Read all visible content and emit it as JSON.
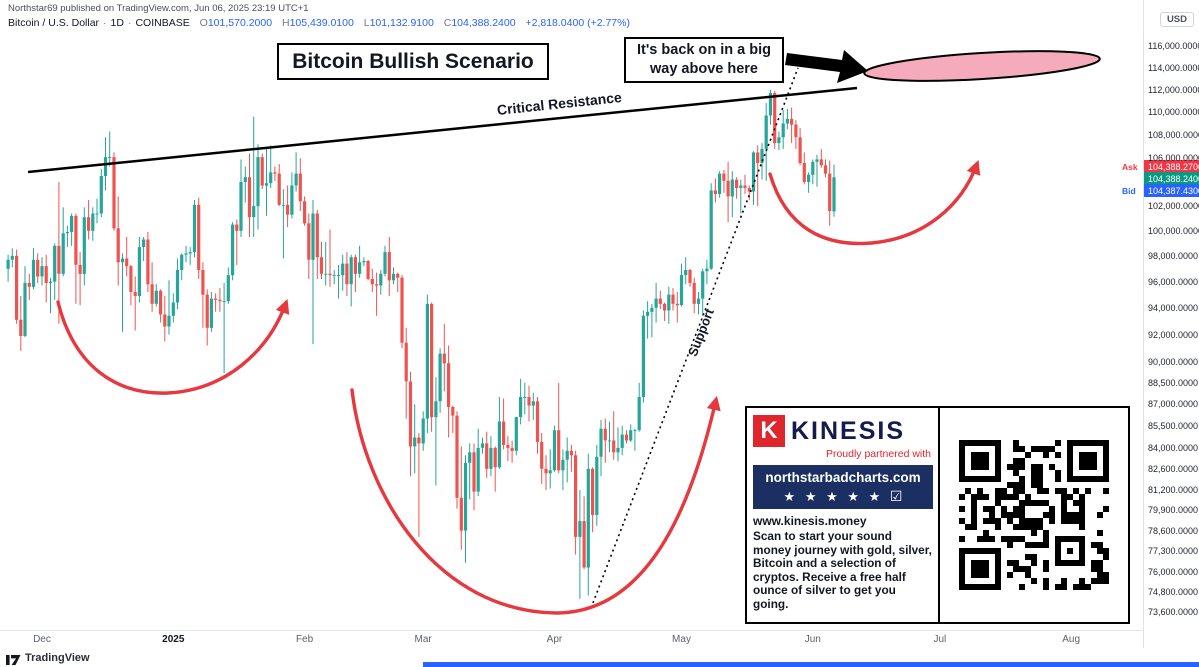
{
  "meta": {
    "published_line": "Northstar69 published on TradingView.com, Jun 06, 2025 23:19 UTC+1"
  },
  "symbol_header": {
    "title": "Bitcoin / U.S. Dollar",
    "sep": "·",
    "interval": "1D",
    "exchange": "COINBASE",
    "o_label": "O",
    "o": "101,570.2000",
    "h_label": "H",
    "h": "105,439.0100",
    "l_label": "L",
    "l": "101,132.9100",
    "c_label": "C",
    "c": "104,388.2400",
    "change": "+2,818.0400 (+2.77%)"
  },
  "annotations": {
    "title": "Bitcoin Bullish Scenario",
    "callout_line1": "It's back on in a big",
    "callout_line2": "way above here",
    "resistance_label": "Critical Resistance",
    "support_label": "Support"
  },
  "price_axis": {
    "currency": "USD",
    "ticks": [
      [
        116000,
        "116,000.0000"
      ],
      [
        114000,
        "114,000.0000"
      ],
      [
        112000,
        "112,000.0000"
      ],
      [
        110000,
        "110,000.0000"
      ],
      [
        108000,
        "108,000.0000"
      ],
      [
        106000,
        "106,000.0000"
      ],
      [
        102000,
        "102,000.0000"
      ],
      [
        100000,
        "100,000.0000"
      ],
      [
        98000,
        "98,000.0000"
      ],
      [
        96000,
        "96,000.0000"
      ],
      [
        94000,
        "94,000.0000"
      ],
      [
        92000,
        "92,000.0000"
      ],
      [
        90000,
        "90,000.0000"
      ],
      [
        88500,
        "88,500.0000"
      ],
      [
        87000,
        "87,000.0000"
      ],
      [
        85500,
        "85,500.0000"
      ],
      [
        84000,
        "84,000.0000"
      ],
      [
        82600,
        "82,600.0000"
      ],
      [
        81200,
        "81,200.0000"
      ],
      [
        79900,
        "79,900.0000"
      ],
      [
        78600,
        "78,600.0000"
      ],
      [
        77300,
        "77,300.0000"
      ],
      [
        76000,
        "76,000.0000"
      ],
      [
        74800,
        "74,800.0000"
      ],
      [
        73600,
        "73,600.0000"
      ]
    ],
    "ask": {
      "label": "Ask",
      "value": "104,388.2700",
      "price": 104388.27
    },
    "last": {
      "value": "104,388.2400",
      "price": 104388.24
    },
    "bid": {
      "label": "Bid",
      "value": "104,387.4300",
      "price": 104387.43
    }
  },
  "time_axis": {
    "labels": [
      {
        "text": "Dec",
        "idx": 8
      },
      {
        "text": "2025",
        "idx": 39
      },
      {
        "text": "Feb",
        "idx": 70
      },
      {
        "text": "Mar",
        "idx": 98
      },
      {
        "text": "Apr",
        "idx": 129
      },
      {
        "text": "May",
        "idx": 159
      },
      {
        "text": "Jun",
        "idx": 190
      },
      {
        "text": "Jul",
        "idx": 220
      },
      {
        "text": "Aug",
        "idx": 251
      }
    ]
  },
  "footer": {
    "brand": "TradingView"
  },
  "ad": {
    "logo_letter": "K",
    "brand": "KINESIS",
    "partner_line": "Proudly partnered with",
    "banner_site": "northstarbadcharts.com",
    "banner_stars": "★ ★ ★ ★ ★",
    "banner_check": "☑",
    "url": "www.kinesis.money",
    "body": "Scan to start your sound money journey with gold, silver, Bitcoin and a selection of cryptos. Receive a free half ounce of silver to get you going."
  },
  "chart_data": {
    "type": "candlestick",
    "symbol": "Bitcoin / U.S. Dollar (COINBASE)",
    "interval": "1D",
    "scale": "logarithmic",
    "values_unit": "USD thousands",
    "date_range": "Nov 23 2024 - Jun 6 2025",
    "ylim": [
      73300,
      117000
    ],
    "x_month_labels": [
      "Dec",
      "2025",
      "Feb",
      "Mar",
      "Apr",
      "May",
      "Jun",
      "Jul",
      "Aug"
    ],
    "ohlc_last": {
      "open": 101570.2,
      "high": 105439.01,
      "low": 101132.91,
      "close": 104388.24,
      "change_pct": 2.77
    },
    "colors": {
      "up": "#26a69a",
      "down": "#ef5350",
      "arrow": "#e5383f",
      "ellipse_fill": "#f5abbc"
    },
    "overlays": [
      "rising resistance trendline",
      "dotted support trendline",
      "three red cup-shaped arrows",
      "pink breakout ellipse above resistance"
    ],
    "candles": [
      [
        97.0,
        98.1,
        96.0,
        97.7
      ],
      [
        97.7,
        98.6,
        97.1,
        98.0
      ],
      [
        98.0,
        98.5,
        92.8,
        93.1
      ],
      [
        93.1,
        94.9,
        90.8,
        91.9
      ],
      [
        91.9,
        97.2,
        91.8,
        95.9
      ],
      [
        95.9,
        96.6,
        94.6,
        95.6
      ],
      [
        95.6,
        98.6,
        95.4,
        97.7
      ],
      [
        97.7,
        98.2,
        95.9,
        96.4
      ],
      [
        96.4,
        97.9,
        95.7,
        97.2
      ],
      [
        97.2,
        98.1,
        94.4,
        95.9
      ],
      [
        95.9,
        96.3,
        93.6,
        96.0
      ],
      [
        96.0,
        99.0,
        94.6,
        98.8
      ],
      [
        98.8,
        104.0,
        92.8,
        96.6
      ],
      [
        96.6,
        101.9,
        96.4,
        99.8
      ],
      [
        99.8,
        100.4,
        98.7,
        99.9
      ],
      [
        99.9,
        101.4,
        98.8,
        101.2
      ],
      [
        101.2,
        101.4,
        94.3,
        97.3
      ],
      [
        97.3,
        98.3,
        94.2,
        96.6
      ],
      [
        96.6,
        101.9,
        95.7,
        101.1
      ],
      [
        101.1,
        102.5,
        99.3,
        100.0
      ],
      [
        100.0,
        101.9,
        99.2,
        101.4
      ],
      [
        101.4,
        102.6,
        100.6,
        101.4
      ],
      [
        101.4,
        105.1,
        101.1,
        104.5
      ],
      [
        104.5,
        107.8,
        103.3,
        106.1
      ],
      [
        106.1,
        108.3,
        105.3,
        106.1
      ],
      [
        106.1,
        106.5,
        100.0,
        100.2
      ],
      [
        100.2,
        102.8,
        95.7,
        97.5
      ],
      [
        97.5,
        98.2,
        92.2,
        97.8
      ],
      [
        97.8,
        99.5,
        96.4,
        97.2
      ],
      [
        97.2,
        97.3,
        94.2,
        95.2
      ],
      [
        95.2,
        96.4,
        92.3,
        94.9
      ],
      [
        94.9,
        99.5,
        94.4,
        98.7
      ],
      [
        98.7,
        99.5,
        97.6,
        99.3
      ],
      [
        99.3,
        99.9,
        95.2,
        95.8
      ],
      [
        95.8,
        97.5,
        93.7,
        94.3
      ],
      [
        94.3,
        95.8,
        94.1,
        95.3
      ],
      [
        95.3,
        95.4,
        92.9,
        93.5
      ],
      [
        93.5,
        94.9,
        91.5,
        92.6
      ],
      [
        92.6,
        96.1,
        92.0,
        93.4
      ],
      [
        93.4,
        95.1,
        92.9,
        94.4
      ],
      [
        94.4,
        97.8,
        93.9,
        96.9
      ],
      [
        96.9,
        98.2,
        96.1,
        98.1
      ],
      [
        98.1,
        98.8,
        97.5,
        98.2
      ],
      [
        98.2,
        98.7,
        97.3,
        98.3
      ],
      [
        98.3,
        102.5,
        97.9,
        102.1
      ],
      [
        102.1,
        102.7,
        96.2,
        96.9
      ],
      [
        96.9,
        97.5,
        92.5,
        95.0
      ],
      [
        95.0,
        95.4,
        91.2,
        92.5
      ],
      [
        92.5,
        95.2,
        92.2,
        94.7
      ],
      [
        94.7,
        95.1,
        93.7,
        94.6
      ],
      [
        94.6,
        95.5,
        93.7,
        94.5
      ],
      [
        94.5,
        95.9,
        89.2,
        94.5
      ],
      [
        94.5,
        97.1,
        94.3,
        96.5
      ],
      [
        96.5,
        100.7,
        96.1,
        100.5
      ],
      [
        100.5,
        100.9,
        97.3,
        100.0
      ],
      [
        100.0,
        105.9,
        99.5,
        104.0
      ],
      [
        104.0,
        105.3,
        102.3,
        104.4
      ],
      [
        104.4,
        106.4,
        99.5,
        101.1
      ],
      [
        101.1,
        109.6,
        99.5,
        102.0
      ],
      [
        102.0,
        107.2,
        100.1,
        106.1
      ],
      [
        106.1,
        106.4,
        103.4,
        103.7
      ],
      [
        103.7,
        106.8,
        101.2,
        103.9
      ],
      [
        103.9,
        107.1,
        103.5,
        104.8
      ],
      [
        104.8,
        105.3,
        104.1,
        104.7
      ],
      [
        104.7,
        105.5,
        102.0,
        102.1
      ],
      [
        102.1,
        103.4,
        97.8,
        102.1
      ],
      [
        102.1,
        103.7,
        100.3,
        101.3
      ],
      [
        101.3,
        104.8,
        101.0,
        103.7
      ],
      [
        103.7,
        106.5,
        103.2,
        104.7
      ],
      [
        104.7,
        106.0,
        101.6,
        102.4
      ],
      [
        102.4,
        102.8,
        100.4,
        100.6
      ],
      [
        100.6,
        101.4,
        96.2,
        97.7
      ],
      [
        97.7,
        102.5,
        91.3,
        101.4
      ],
      [
        101.4,
        101.7,
        96.2,
        97.9
      ],
      [
        97.9,
        99.1,
        96.2,
        96.6
      ],
      [
        96.6,
        99.1,
        95.7,
        96.6
      ],
      [
        96.6,
        100.1,
        95.6,
        96.5
      ],
      [
        96.5,
        96.9,
        95.8,
        96.5
      ],
      [
        96.5,
        97.3,
        94.7,
        96.5
      ],
      [
        96.5,
        98.1,
        95.3,
        97.4
      ],
      [
        97.4,
        98.3,
        94.9,
        95.8
      ],
      [
        95.8,
        98.1,
        94.1,
        97.9
      ],
      [
        97.9,
        98.1,
        95.2,
        96.6
      ],
      [
        96.6,
        98.8,
        96.3,
        97.5
      ],
      [
        97.5,
        97.9,
        97.2,
        97.6
      ],
      [
        97.6,
        97.7,
        96.1,
        96.2
      ],
      [
        96.2,
        97.0,
        95.2,
        95.8
      ],
      [
        95.8,
        96.7,
        93.4,
        95.7
      ],
      [
        95.7,
        96.9,
        95.0,
        96.6
      ],
      [
        96.6,
        98.8,
        96.4,
        98.3
      ],
      [
        98.3,
        99.5,
        94.9,
        96.1
      ],
      [
        96.1,
        97.1,
        95.8,
        96.6
      ],
      [
        96.6,
        96.7,
        95.2,
        96.3
      ],
      [
        96.3,
        96.5,
        91.0,
        91.4
      ],
      [
        91.4,
        92.5,
        86.0,
        88.6
      ],
      [
        88.6,
        89.3,
        82.1,
        84.1
      ],
      [
        84.1,
        87.0,
        82.3,
        84.7
      ],
      [
        84.7,
        85.0,
        78.2,
        84.3
      ],
      [
        84.3,
        86.5,
        83.8,
        86.0
      ],
      [
        86.0,
        95.0,
        85.0,
        94.3
      ],
      [
        94.3,
        94.4,
        85.1,
        86.1
      ],
      [
        86.1,
        88.9,
        81.5,
        87.2
      ],
      [
        87.2,
        91.0,
        86.4,
        90.6
      ],
      [
        90.6,
        92.8,
        87.9,
        89.9
      ],
      [
        89.9,
        91.2,
        84.7,
        86.8
      ],
      [
        86.8,
        86.9,
        85.0,
        86.2
      ],
      [
        86.2,
        86.5,
        80.0,
        80.7
      ],
      [
        80.7,
        84.1,
        77.4,
        78.6
      ],
      [
        78.6,
        83.5,
        76.6,
        83.0
      ],
      [
        83.0,
        84.3,
        80.6,
        83.7
      ],
      [
        83.7,
        84.3,
        79.9,
        81.1
      ],
      [
        81.1,
        85.3,
        80.8,
        84.0
      ],
      [
        84.0,
        84.7,
        83.6,
        84.3
      ],
      [
        84.3,
        85.1,
        82.0,
        82.6
      ],
      [
        82.6,
        84.8,
        82.1,
        84.0
      ],
      [
        84.0,
        84.1,
        81.1,
        82.7
      ],
      [
        82.7,
        87.5,
        82.6,
        85.8
      ],
      [
        85.8,
        87.4,
        83.9,
        84.2
      ],
      [
        84.2,
        84.8,
        83.1,
        84.0
      ],
      [
        84.0,
        84.5,
        83.0,
        83.8
      ],
      [
        83.8,
        86.1,
        83.5,
        86.1
      ],
      [
        86.1,
        88.8,
        85.6,
        87.5
      ],
      [
        87.5,
        88.5,
        86.3,
        87.5
      ],
      [
        87.5,
        88.3,
        85.8,
        86.9
      ],
      [
        86.9,
        87.8,
        85.9,
        87.2
      ],
      [
        87.2,
        87.5,
        83.6,
        84.4
      ],
      [
        84.4,
        85.0,
        81.6,
        82.6
      ],
      [
        82.6,
        83.5,
        81.2,
        82.3
      ],
      [
        82.3,
        83.9,
        81.3,
        82.5
      ],
      [
        82.5,
        85.5,
        82.4,
        85.2
      ],
      [
        85.2,
        88.5,
        82.3,
        82.5
      ],
      [
        82.5,
        83.9,
        81.2,
        83.2
      ],
      [
        83.2,
        84.7,
        81.7,
        83.8
      ],
      [
        83.8,
        84.2,
        82.4,
        83.5
      ],
      [
        83.5,
        83.8,
        77.1,
        78.2
      ],
      [
        78.2,
        81.2,
        74.4,
        79.2
      ],
      [
        79.2,
        80.8,
        76.2,
        76.3
      ],
      [
        76.3,
        83.6,
        74.6,
        82.6
      ],
      [
        82.6,
        82.7,
        78.5,
        79.6
      ],
      [
        79.6,
        84.2,
        78.9,
        83.4
      ],
      [
        83.4,
        85.9,
        82.1,
        85.3
      ],
      [
        85.3,
        86.0,
        83.0,
        84.5
      ],
      [
        84.5,
        85.8,
        83.7,
        84.5
      ],
      [
        84.5,
        86.5,
        83.2,
        83.7
      ],
      [
        83.7,
        85.4,
        83.1,
        84.0
      ],
      [
        84.0,
        85.5,
        83.5,
        84.9
      ],
      [
        84.9,
        85.2,
        84.3,
        84.5
      ],
      [
        84.5,
        85.6,
        84.4,
        85.2
      ],
      [
        85.2,
        85.3,
        83.8,
        85.2
      ],
      [
        85.2,
        88.5,
        85.1,
        87.5
      ],
      [
        87.5,
        93.8,
        87.1,
        93.4
      ],
      [
        93.4,
        94.5,
        91.7,
        93.7
      ],
      [
        93.7,
        94.3,
        91.8,
        94.0
      ],
      [
        94.0,
        95.9,
        92.9,
        94.7
      ],
      [
        94.7,
        95.3,
        93.9,
        94.3
      ],
      [
        94.3,
        94.4,
        93.0,
        93.8
      ],
      [
        93.8,
        95.6,
        92.8,
        95.0
      ],
      [
        95.0,
        95.5,
        93.8,
        94.3
      ],
      [
        94.3,
        95.2,
        92.9,
        94.2
      ],
      [
        94.2,
        97.4,
        94.1,
        96.5
      ],
      [
        96.5,
        97.9,
        95.8,
        96.9
      ],
      [
        96.9,
        97.0,
        95.6,
        95.9
      ],
      [
        95.9,
        96.3,
        93.6,
        94.3
      ],
      [
        94.3,
        95.2,
        93.5,
        94.7
      ],
      [
        94.7,
        97.0,
        93.4,
        96.8
      ],
      [
        96.8,
        97.7,
        95.8,
        97.0
      ],
      [
        97.0,
        103.9,
        96.9,
        103.3
      ],
      [
        103.3,
        104.3,
        102.3,
        103.0
      ],
      [
        103.0,
        104.9,
        102.7,
        104.7
      ],
      [
        104.7,
        105.0,
        103.1,
        104.1
      ],
      [
        104.1,
        105.7,
        100.7,
        102.8
      ],
      [
        102.8,
        104.9,
        101.1,
        104.2
      ],
      [
        104.2,
        104.4,
        102.6,
        103.5
      ],
      [
        103.5,
        104.2,
        101.4,
        103.7
      ],
      [
        103.7,
        104.6,
        103.0,
        103.5
      ],
      [
        103.5,
        103.7,
        102.5,
        103.2
      ],
      [
        103.2,
        106.6,
        102.1,
        106.5
      ],
      [
        106.5,
        107.1,
        102.0,
        105.6
      ],
      [
        105.6,
        107.3,
        104.2,
        106.8
      ],
      [
        106.8,
        110.8,
        104.1,
        109.7
      ],
      [
        109.7,
        112.0,
        108.9,
        111.7
      ],
      [
        111.7,
        111.9,
        106.8,
        107.3
      ],
      [
        107.3,
        108.3,
        106.7,
        107.8
      ],
      [
        107.8,
        110.2,
        106.8,
        109.0
      ],
      [
        109.0,
        110.3,
        108.5,
        109.4
      ],
      [
        109.4,
        110.4,
        107.3,
        108.9
      ],
      [
        108.9,
        109.3,
        106.8,
        107.8
      ],
      [
        107.8,
        108.6,
        105.4,
        105.6
      ],
      [
        105.6,
        106.5,
        103.8,
        104.0
      ],
      [
        104.0,
        104.8,
        103.1,
        104.6
      ],
      [
        104.6,
        105.9,
        103.8,
        105.7
      ],
      [
        105.7,
        106.3,
        103.6,
        105.9
      ],
      [
        105.9,
        106.8,
        105.2,
        105.4
      ],
      [
        105.4,
        105.9,
        104.4,
        104.7
      ],
      [
        104.7,
        105.8,
        100.4,
        101.6
      ],
      [
        101.57,
        105.44,
        101.13,
        104.39
      ]
    ]
  }
}
